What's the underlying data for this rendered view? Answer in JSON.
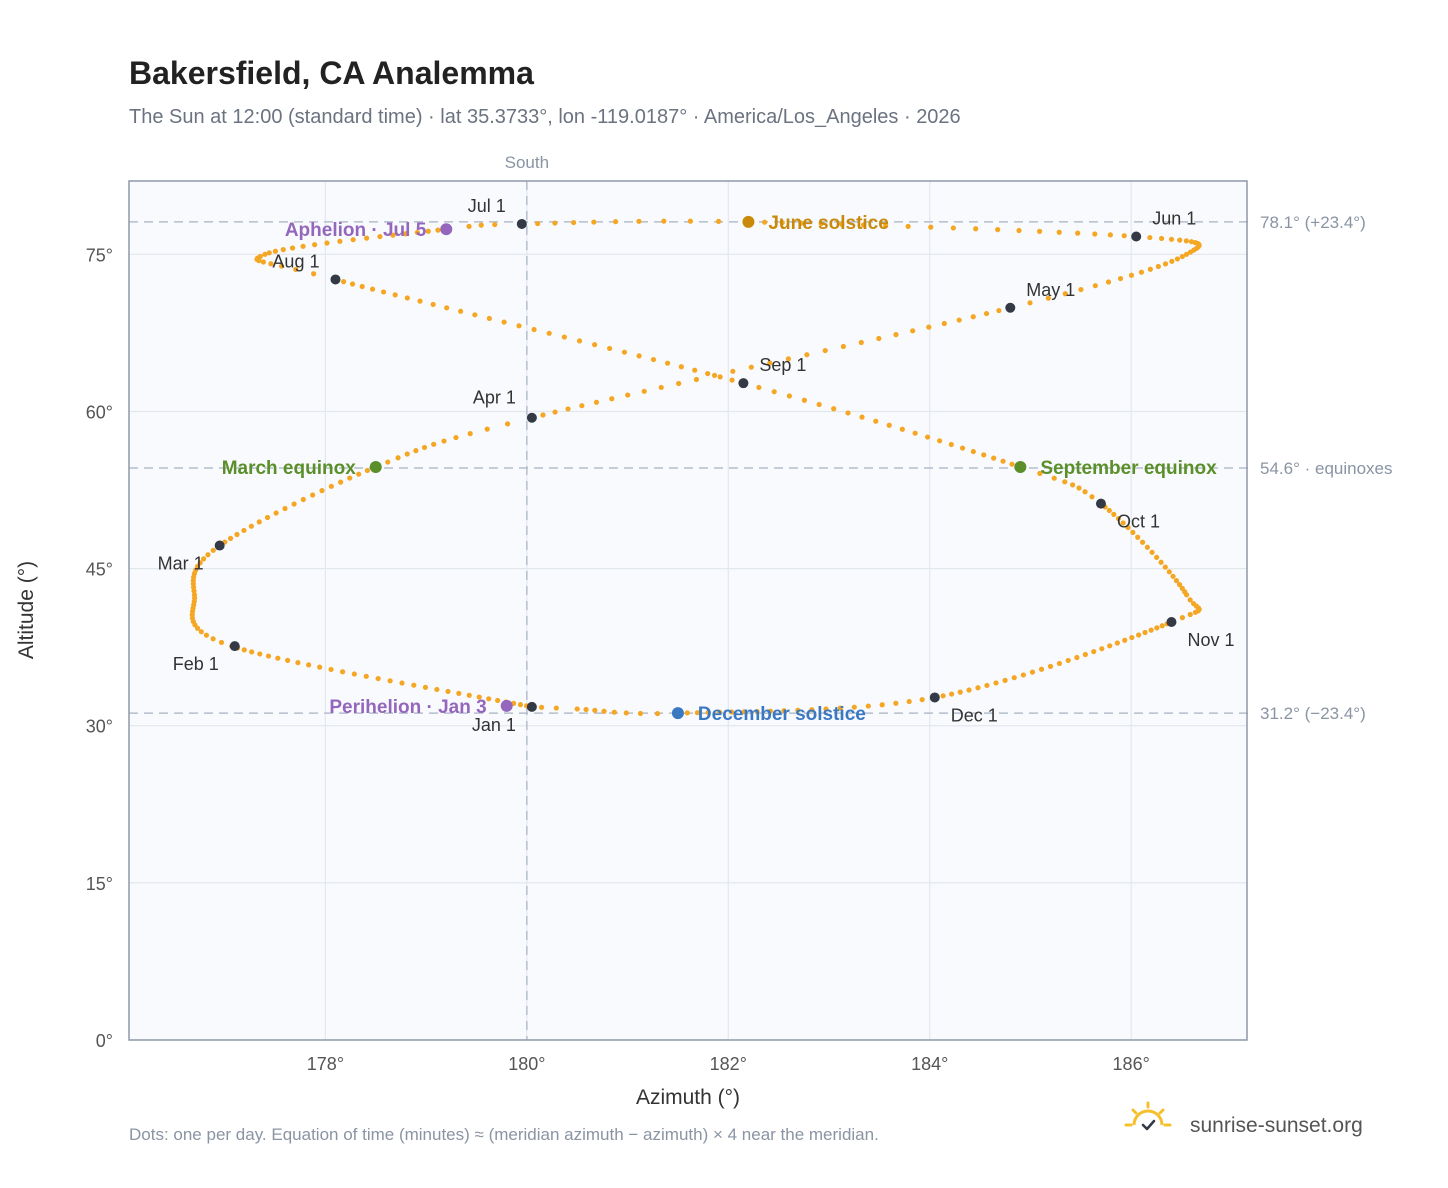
{
  "page": {
    "title": "Bakersfield, CA Analemma",
    "subtitle": "The Sun at 12:00 (standard time) · lat 35.3733°, lon -119.0187° · America/Los_Angeles · 2026",
    "footnote": "Dots: one per day. Equation of time (minutes) ≈ (meridian azimuth − azimuth) × 4 near the meridian.",
    "brand": "sunrise-sunset.org",
    "brand_icon": "sun-logo-icon"
  },
  "chart_data": {
    "type": "scatter",
    "xlabel": "Azimuth (°)",
    "ylabel": "Altitude (°)",
    "xlim": [
      176.05,
      187.15
    ],
    "ylim": [
      0,
      82
    ],
    "x_ticks": [
      {
        "value": 178,
        "label": "178°"
      },
      {
        "value": 180,
        "label": "180°"
      },
      {
        "value": 182,
        "label": "182°"
      },
      {
        "value": 184,
        "label": "184°"
      },
      {
        "value": 186,
        "label": "186°"
      }
    ],
    "y_ticks": [
      {
        "value": 0,
        "label": "0°"
      },
      {
        "value": 15,
        "label": "15°"
      },
      {
        "value": 30,
        "label": "30°"
      },
      {
        "value": 45,
        "label": "45°"
      },
      {
        "value": 60,
        "label": "60°"
      },
      {
        "value": 75,
        "label": "75°"
      }
    ],
    "grid": true,
    "meridian": {
      "azimuth": 180,
      "label": "South"
    },
    "reference_lines": [
      {
        "altitude": 78.1,
        "label": "78.1° (+23.4°)"
      },
      {
        "altitude": 54.6,
        "label": "54.6° · equinoxes"
      },
      {
        "altitude": 31.2,
        "label": "31.2° (−23.4°)"
      }
    ],
    "curve_anchors": [
      {
        "day": 1,
        "az": 180.05,
        "alt": 31.8
      },
      {
        "day": 32,
        "az": 177.07,
        "alt": 37.6
      },
      {
        "day": 47,
        "az": 176.7,
        "alt": 42.5
      },
      {
        "day": 60,
        "az": 176.95,
        "alt": 47.2
      },
      {
        "day": 79,
        "az": 178.5,
        "alt": 54.7
      },
      {
        "day": 91,
        "az": 180.05,
        "alt": 59.4
      },
      {
        "day": 121,
        "az": 184.8,
        "alt": 69.9
      },
      {
        "day": 137,
        "az": 186.55,
        "alt": 75.0
      },
      {
        "day": 152,
        "az": 186.05,
        "alt": 76.7
      },
      {
        "day": 172,
        "az": 182.2,
        "alt": 78.1
      },
      {
        "day": 182,
        "az": 179.95,
        "alt": 77.9
      },
      {
        "day": 186,
        "az": 179.2,
        "alt": 77.4
      },
      {
        "day": 203,
        "az": 177.4,
        "alt": 75.0
      },
      {
        "day": 213,
        "az": 178.1,
        "alt": 72.6
      },
      {
        "day": 244,
        "az": 182.15,
        "alt": 62.7
      },
      {
        "day": 266,
        "az": 184.9,
        "alt": 54.7
      },
      {
        "day": 274,
        "az": 185.7,
        "alt": 51.2
      },
      {
        "day": 295,
        "az": 186.55,
        "alt": 42.5
      },
      {
        "day": 305,
        "az": 186.4,
        "alt": 39.9
      },
      {
        "day": 335,
        "az": 184.05,
        "alt": 32.7
      },
      {
        "day": 355,
        "az": 181.5,
        "alt": 31.2
      },
      {
        "day": 363,
        "az": 180.5,
        "alt": 31.6
      },
      {
        "day": 366,
        "az": 180.05,
        "alt": 31.8
      }
    ],
    "month_markers": [
      {
        "label": "Jan 1",
        "az": 180.05,
        "alt": 31.8,
        "anchor": "end",
        "dx": -16,
        "dy": 24
      },
      {
        "label": "Feb 1",
        "az": 177.1,
        "alt": 37.6,
        "anchor": "end",
        "dx": -16,
        "dy": 24
      },
      {
        "label": "Mar 1",
        "az": 176.95,
        "alt": 47.2,
        "anchor": "end",
        "dx": -16,
        "dy": 24
      },
      {
        "label": "Apr 1",
        "az": 180.05,
        "alt": 59.4,
        "anchor": "end",
        "dx": -16,
        "dy": -14
      },
      {
        "label": "May 1",
        "az": 184.8,
        "alt": 69.9,
        "anchor": "start",
        "dx": 16,
        "dy": -12
      },
      {
        "label": "Jun 1",
        "az": 186.05,
        "alt": 76.7,
        "anchor": "start",
        "dx": 16,
        "dy": -12
      },
      {
        "label": "Jul 1",
        "az": 179.95,
        "alt": 77.9,
        "anchor": "end",
        "dx": -16,
        "dy": -12
      },
      {
        "label": "Aug 1",
        "az": 178.1,
        "alt": 72.6,
        "anchor": "end",
        "dx": -16,
        "dy": -12
      },
      {
        "label": "Sep 1",
        "az": 182.15,
        "alt": 62.7,
        "anchor": "start",
        "dx": 16,
        "dy": -12
      },
      {
        "label": "Oct 1",
        "az": 185.7,
        "alt": 51.2,
        "anchor": "start",
        "dx": 16,
        "dy": 24
      },
      {
        "label": "Nov 1",
        "az": 186.4,
        "alt": 39.9,
        "anchor": "start",
        "dx": 16,
        "dy": 24
      },
      {
        "label": "Dec 1",
        "az": 184.05,
        "alt": 32.7,
        "anchor": "start",
        "dx": 16,
        "dy": 24
      }
    ],
    "events": [
      {
        "label": "June solstice",
        "az": 182.2,
        "alt": 78.1,
        "color": "#c98a0c",
        "anchor": "start",
        "dx": 20
      },
      {
        "label": "Aphelion · Jul 5",
        "az": 179.2,
        "alt": 77.4,
        "color": "#9467bd",
        "anchor": "end",
        "dx": -20
      },
      {
        "label": "March equinox",
        "az": 178.5,
        "alt": 54.7,
        "color": "#5a8f29",
        "anchor": "end",
        "dx": -20
      },
      {
        "label": "September equinox",
        "az": 184.9,
        "alt": 54.7,
        "color": "#5a8f29",
        "anchor": "start",
        "dx": 20
      },
      {
        "label": "Perihelion · Jan 3",
        "az": 179.8,
        "alt": 31.9,
        "color": "#9467bd",
        "anchor": "end",
        "dx": -20
      },
      {
        "label": "December solstice",
        "az": 181.5,
        "alt": 31.2,
        "color": "#3a78c2",
        "anchor": "start",
        "dx": 20
      }
    ],
    "colors": {
      "daily_dots": "#f5a623",
      "month_markers": "#333a45",
      "plot_background": "#f8fafd",
      "grid": "#e3e8ee",
      "frame": "#8f99a8",
      "reference_lines": "#b4bfcc",
      "brand_sun": "#f5c02c"
    }
  }
}
